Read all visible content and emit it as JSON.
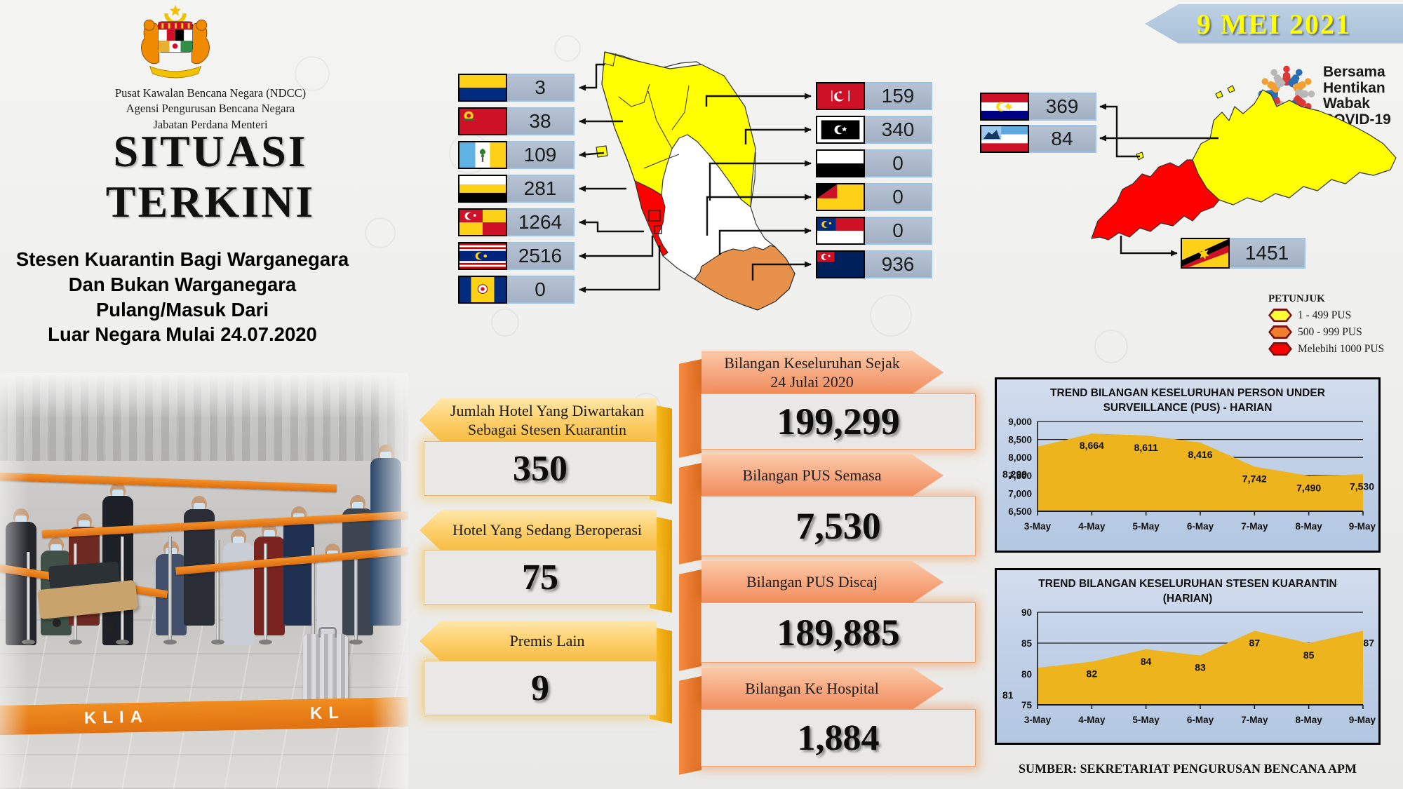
{
  "header": {
    "org_lines": [
      "Pusat Kawalan Bencana Negara (NDCC)",
      "Agensi Pengurusan Bencana Negara",
      "Jabatan Perdana Menteri"
    ],
    "title_line1": "SITUASI",
    "title_line2": "TERKINI",
    "subtitle_lines": [
      "Stesen Kuarantin Bagi Warganegara",
      "Dan Bukan Warganegara",
      "Pulang/Masuk Dari",
      "Luar Negara Mulai 24.07.2020"
    ],
    "date_banner": "9 MEI 2021",
    "campaign_lines": [
      "Bersama",
      "Hentikan",
      "Wabak",
      "COVID-19"
    ]
  },
  "map": {
    "peninsular_left": [
      {
        "state": "perlis",
        "value": "3"
      },
      {
        "state": "kedah",
        "value": "38"
      },
      {
        "state": "pulau-pinang",
        "value": "109"
      },
      {
        "state": "perak",
        "value": "281"
      },
      {
        "state": "selangor",
        "value": "1264"
      },
      {
        "state": "kuala-lumpur",
        "value": "2516"
      },
      {
        "state": "putrajaya",
        "value": "0"
      }
    ],
    "peninsular_right": [
      {
        "state": "kelantan",
        "value": "159"
      },
      {
        "state": "terengganu",
        "value": "340"
      },
      {
        "state": "pahang",
        "value": "0"
      },
      {
        "state": "negeri-sembilan",
        "value": "0"
      },
      {
        "state": "melaka",
        "value": "0"
      },
      {
        "state": "johor",
        "value": "936"
      }
    ],
    "east": [
      {
        "state": "labuan",
        "value": "369"
      },
      {
        "state": "sabah",
        "value": "84"
      },
      {
        "state": "sarawak",
        "value": "1451"
      }
    ],
    "legend": {
      "title": "PETUNJUK",
      "items": [
        {
          "label": "1 - 499 PUS",
          "color": "#FFFF33"
        },
        {
          "label": "500 - 999 PUS",
          "color": "#F07F2D"
        },
        {
          "label": "Melebihi 1000 PUS",
          "color": "#FF0000"
        }
      ]
    }
  },
  "stats_left": [
    {
      "line1": "Jumlah Hotel Yang Diwartakan",
      "line2": "Sebagai Stesen Kuarantin",
      "value": "350"
    },
    {
      "line1": "Hotel Yang Sedang Beroperasi",
      "value": "75"
    },
    {
      "line1": "Premis Lain",
      "value": "9"
    }
  ],
  "stats_right": [
    {
      "line1": "Bilangan Keseluruhan Sejak",
      "line2": "24 Julai 2020",
      "value": "199,299"
    },
    {
      "line1": "Bilangan PUS Semasa",
      "value": "7,530"
    },
    {
      "line1": "Bilangan PUS Discaj",
      "value": "189,885"
    },
    {
      "line1": "Bilangan Ke Hospital",
      "value": "1,884"
    }
  ],
  "chart_data": [
    {
      "type": "area",
      "title": "TREND BILANGAN KESELURUHAN PERSON UNDER SURVEILLANCE (PUS) - HARIAN",
      "categories": [
        "3-May",
        "4-May",
        "5-May",
        "6-May",
        "7-May",
        "8-May",
        "9-May"
      ],
      "values": [
        8299,
        8664,
        8611,
        8416,
        7742,
        7490,
        7530
      ],
      "value_labels": [
        "8,299",
        "8,664",
        "8,611",
        "8,416",
        "7,742",
        "7,490",
        "7,530"
      ],
      "ylim": [
        6500,
        9000
      ],
      "yticks": [
        6500,
        7000,
        7500,
        8000,
        8500,
        9000
      ],
      "ytick_labels": [
        "6,500",
        "7,000",
        "7,500",
        "8,000",
        "8,500",
        "9,000"
      ],
      "xlabel": "",
      "ylabel": "",
      "area_color": "#EDB41E",
      "grid": true,
      "legend_position": "none"
    },
    {
      "type": "area",
      "title": "TREND BILANGAN KESELURUHAN STESEN KUARANTIN (HARIAN)",
      "categories": [
        "3-May",
        "4-May",
        "5-May",
        "6-May",
        "7-May",
        "8-May",
        "9-May"
      ],
      "values": [
        81,
        82,
        84,
        83,
        87,
        85,
        87
      ],
      "value_labels": [
        "81",
        "82",
        "84",
        "83",
        "87",
        "85",
        "87"
      ],
      "ylim": [
        75,
        90
      ],
      "yticks": [
        75,
        80,
        85,
        90
      ],
      "ytick_labels": [
        "75",
        "80",
        "85",
        "90"
      ],
      "xlabel": "",
      "ylabel": "",
      "area_color": "#EDB41E",
      "grid": true,
      "legend_position": "none"
    }
  ],
  "source": "SUMBER: SEKRETARIAT PENGURUSAN BENCANA APM",
  "photo": {
    "watermark": "KLIA"
  }
}
